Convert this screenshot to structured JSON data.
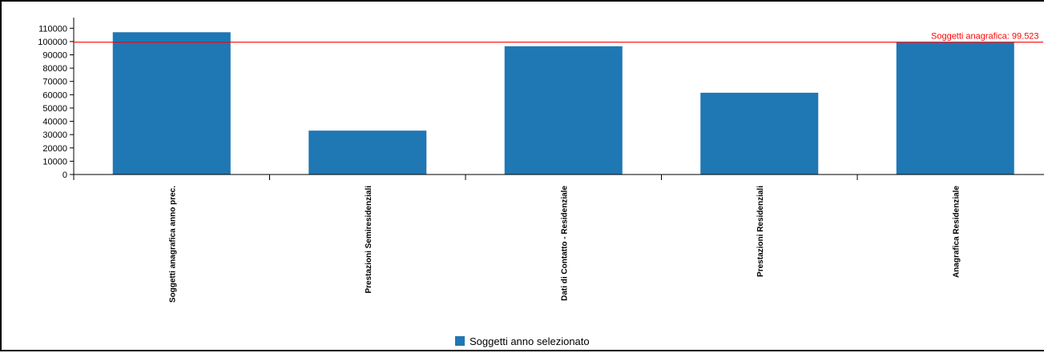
{
  "colors": {
    "bar": "#1f77b4",
    "reference": "#ff0000",
    "axis": "#000000"
  },
  "chart_data": {
    "type": "bar",
    "categories": [
      "Soggetti anagrafica anno prec.",
      "Prestazioni Semiresidenziali",
      "Dati di Contatto - Residenziale",
      "Prestazioni Residenziali",
      "Anagrafica Residenziale"
    ],
    "series": [
      {
        "name": "Soggetti anno selezionato",
        "values": [
          107000,
          33000,
          96500,
          61500,
          99500
        ]
      }
    ],
    "ylim": [
      0,
      118000
    ],
    "yticks": [
      0,
      10000,
      20000,
      30000,
      40000,
      50000,
      60000,
      70000,
      80000,
      90000,
      100000,
      110000
    ],
    "ytick_labels": [
      "0",
      "10000",
      "20000",
      "30000",
      "40000",
      "50000",
      "60000",
      "70000",
      "80000",
      "90000",
      "100000",
      "110000"
    ],
    "reference_line": {
      "value": 99523,
      "label": "Soggetti anagrafica: 99.523"
    },
    "legend": {
      "position": "bottom-center"
    },
    "grid": false
  }
}
